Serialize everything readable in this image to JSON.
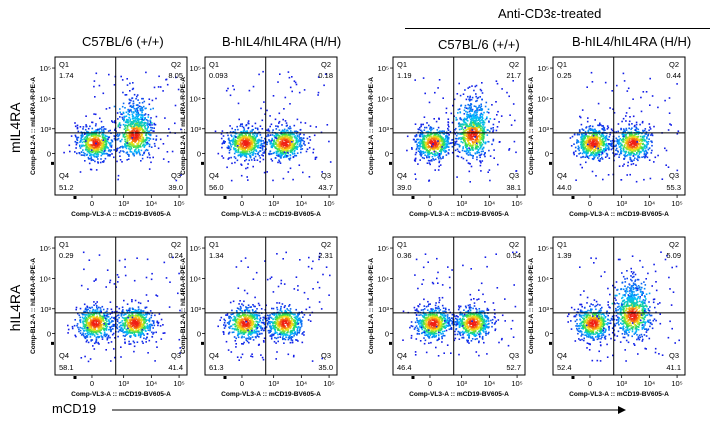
{
  "header": {
    "treated_label": "Anti-CD3ε-treated",
    "columns": [
      "C57BL/6 (+/+)",
      "B-hIL4/hIL4RA  (H/H)",
      "C57BL/6 (+/+)",
      "B-hIL4/hIL4RA  (H/H)"
    ]
  },
  "rows": [
    "mIL4RA",
    "hIL4RA"
  ],
  "x_axis_label": "mCD19",
  "chart_data": {
    "type": "scatter",
    "description_kind": "flow cytometry density plots with quadrant gates",
    "x_ticks": [
      "0",
      "10³",
      "10⁴",
      "10⁵"
    ],
    "y_ticks": [
      "0",
      "10³",
      "10⁴",
      "10⁵"
    ],
    "x_axis_title": "Comp-VL3-A :: mCD19-BV605-A",
    "panels": [
      {
        "row": "mIL4RA",
        "column": "C57BL/6 (+/+)",
        "y_axis_title": "Comp-BL2-A :: mIL4RA-R-PE-A",
        "quadrants": {
          "Q1": "1.74",
          "Q2": "8.05",
          "Q3": "39.0",
          "Q4": "51.2"
        }
      },
      {
        "row": "mIL4RA",
        "column": "B-hIL4/hIL4RA (H/H)",
        "y_axis_title": "Comp-BL2-A :: mIL4RA-R-PE-A",
        "quadrants": {
          "Q1": "0.093",
          "Q2": "0.18",
          "Q3": "43.7",
          "Q4": "56.0"
        }
      },
      {
        "row": "mIL4RA",
        "column": "C57BL/6 (+/+) Anti-CD3ε-treated",
        "y_axis_title": "Comp-BL2-A :: mIL4RA-R-PE-A",
        "quadrants": {
          "Q1": "1.19",
          "Q2": "21.7",
          "Q3": "38.1",
          "Q4": "39.0"
        }
      },
      {
        "row": "mIL4RA",
        "column": "B-hIL4/hIL4RA (H/H) Anti-CD3ε-treated",
        "y_axis_title": "Comp-BL2-A :: mIL4RA-R-PE-A",
        "quadrants": {
          "Q1": "0.25",
          "Q2": "0.44",
          "Q3": "55.3",
          "Q4": "44.0"
        }
      },
      {
        "row": "hIL4RA",
        "column": "C57BL/6 (+/+)",
        "y_axis_title": "Comp-BL2-A :: hIL4RA-R-PE-A",
        "quadrants": {
          "Q1": "0.29",
          "Q2": "0.24",
          "Q3": "41.4",
          "Q4": "58.1"
        }
      },
      {
        "row": "hIL4RA",
        "column": "B-hIL4/hIL4RA (H/H)",
        "y_axis_title": "Comp-BL2-A :: hIL4RA-R-PE-A",
        "quadrants": {
          "Q1": "1.34",
          "Q2": "2.31",
          "Q3": "35.0",
          "Q4": "61.3"
        }
      },
      {
        "row": "hIL4RA",
        "column": "C57BL/6 (+/+) Anti-CD3ε-treated",
        "y_axis_title": "Comp-BL2-A :: hIL4RA-R-PE-A",
        "quadrants": {
          "Q1": "0.36",
          "Q2": "0.54",
          "Q3": "52.7",
          "Q4": "46.4"
        }
      },
      {
        "row": "hIL4RA",
        "column": "B-hIL4/hIL4RA (H/H) Anti-CD3ε-treated",
        "y_axis_title": "Comp-BL2-A :: hIL4RA-R-PE-A",
        "quadrants": {
          "Q1": "1.39",
          "Q2": "5.09",
          "Q3": "41.1",
          "Q4": "52.4"
        }
      }
    ]
  }
}
